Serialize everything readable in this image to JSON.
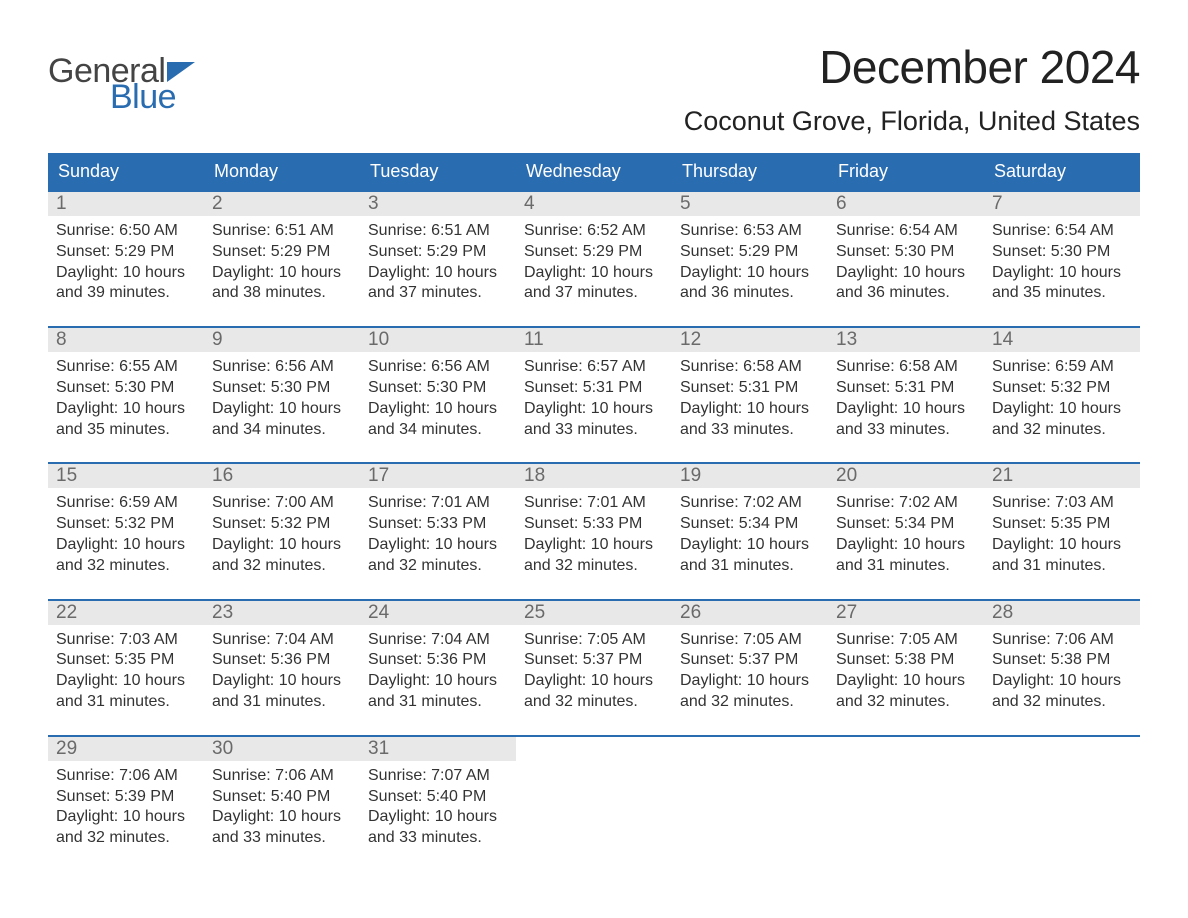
{
  "logo": {
    "word1": "General",
    "word2": "Blue"
  },
  "title": "December 2024",
  "location": "Coconut Grove, Florida, United States",
  "weekdays": [
    "Sunday",
    "Monday",
    "Tuesday",
    "Wednesday",
    "Thursday",
    "Friday",
    "Saturday"
  ],
  "colors": {
    "header_bg": "#2a6cb0",
    "header_fg": "#ffffff",
    "daynum_bg": "#e8e8e8",
    "daynum_fg": "#6a6a6a",
    "rule": "#2a6cb0",
    "text": "#333333",
    "page_bg": "#ffffff"
  },
  "typography": {
    "title_fontsize": 46,
    "location_fontsize": 27,
    "weekday_fontsize": 18,
    "daynum_fontsize": 19,
    "body_fontsize": 16
  },
  "labels": {
    "sunrise": "Sunrise:",
    "sunset": "Sunset:",
    "daylight": "Daylight:"
  },
  "weeks": [
    [
      {
        "n": "1",
        "sunrise": "6:50 AM",
        "sunset": "5:29 PM",
        "daylight": "10 hours and 39 minutes."
      },
      {
        "n": "2",
        "sunrise": "6:51 AM",
        "sunset": "5:29 PM",
        "daylight": "10 hours and 38 minutes."
      },
      {
        "n": "3",
        "sunrise": "6:51 AM",
        "sunset": "5:29 PM",
        "daylight": "10 hours and 37 minutes."
      },
      {
        "n": "4",
        "sunrise": "6:52 AM",
        "sunset": "5:29 PM",
        "daylight": "10 hours and 37 minutes."
      },
      {
        "n": "5",
        "sunrise": "6:53 AM",
        "sunset": "5:29 PM",
        "daylight": "10 hours and 36 minutes."
      },
      {
        "n": "6",
        "sunrise": "6:54 AM",
        "sunset": "5:30 PM",
        "daylight": "10 hours and 36 minutes."
      },
      {
        "n": "7",
        "sunrise": "6:54 AM",
        "sunset": "5:30 PM",
        "daylight": "10 hours and 35 minutes."
      }
    ],
    [
      {
        "n": "8",
        "sunrise": "6:55 AM",
        "sunset": "5:30 PM",
        "daylight": "10 hours and 35 minutes."
      },
      {
        "n": "9",
        "sunrise": "6:56 AM",
        "sunset": "5:30 PM",
        "daylight": "10 hours and 34 minutes."
      },
      {
        "n": "10",
        "sunrise": "6:56 AM",
        "sunset": "5:30 PM",
        "daylight": "10 hours and 34 minutes."
      },
      {
        "n": "11",
        "sunrise": "6:57 AM",
        "sunset": "5:31 PM",
        "daylight": "10 hours and 33 minutes."
      },
      {
        "n": "12",
        "sunrise": "6:58 AM",
        "sunset": "5:31 PM",
        "daylight": "10 hours and 33 minutes."
      },
      {
        "n": "13",
        "sunrise": "6:58 AM",
        "sunset": "5:31 PM",
        "daylight": "10 hours and 33 minutes."
      },
      {
        "n": "14",
        "sunrise": "6:59 AM",
        "sunset": "5:32 PM",
        "daylight": "10 hours and 32 minutes."
      }
    ],
    [
      {
        "n": "15",
        "sunrise": "6:59 AM",
        "sunset": "5:32 PM",
        "daylight": "10 hours and 32 minutes."
      },
      {
        "n": "16",
        "sunrise": "7:00 AM",
        "sunset": "5:32 PM",
        "daylight": "10 hours and 32 minutes."
      },
      {
        "n": "17",
        "sunrise": "7:01 AM",
        "sunset": "5:33 PM",
        "daylight": "10 hours and 32 minutes."
      },
      {
        "n": "18",
        "sunrise": "7:01 AM",
        "sunset": "5:33 PM",
        "daylight": "10 hours and 32 minutes."
      },
      {
        "n": "19",
        "sunrise": "7:02 AM",
        "sunset": "5:34 PM",
        "daylight": "10 hours and 31 minutes."
      },
      {
        "n": "20",
        "sunrise": "7:02 AM",
        "sunset": "5:34 PM",
        "daylight": "10 hours and 31 minutes."
      },
      {
        "n": "21",
        "sunrise": "7:03 AM",
        "sunset": "5:35 PM",
        "daylight": "10 hours and 31 minutes."
      }
    ],
    [
      {
        "n": "22",
        "sunrise": "7:03 AM",
        "sunset": "5:35 PM",
        "daylight": "10 hours and 31 minutes."
      },
      {
        "n": "23",
        "sunrise": "7:04 AM",
        "sunset": "5:36 PM",
        "daylight": "10 hours and 31 minutes."
      },
      {
        "n": "24",
        "sunrise": "7:04 AM",
        "sunset": "5:36 PM",
        "daylight": "10 hours and 31 minutes."
      },
      {
        "n": "25",
        "sunrise": "7:05 AM",
        "sunset": "5:37 PM",
        "daylight": "10 hours and 32 minutes."
      },
      {
        "n": "26",
        "sunrise": "7:05 AM",
        "sunset": "5:37 PM",
        "daylight": "10 hours and 32 minutes."
      },
      {
        "n": "27",
        "sunrise": "7:05 AM",
        "sunset": "5:38 PM",
        "daylight": "10 hours and 32 minutes."
      },
      {
        "n": "28",
        "sunrise": "7:06 AM",
        "sunset": "5:38 PM",
        "daylight": "10 hours and 32 minutes."
      }
    ],
    [
      {
        "n": "29",
        "sunrise": "7:06 AM",
        "sunset": "5:39 PM",
        "daylight": "10 hours and 32 minutes."
      },
      {
        "n": "30",
        "sunrise": "7:06 AM",
        "sunset": "5:40 PM",
        "daylight": "10 hours and 33 minutes."
      },
      {
        "n": "31",
        "sunrise": "7:07 AM",
        "sunset": "5:40 PM",
        "daylight": "10 hours and 33 minutes."
      },
      null,
      null,
      null,
      null
    ]
  ]
}
